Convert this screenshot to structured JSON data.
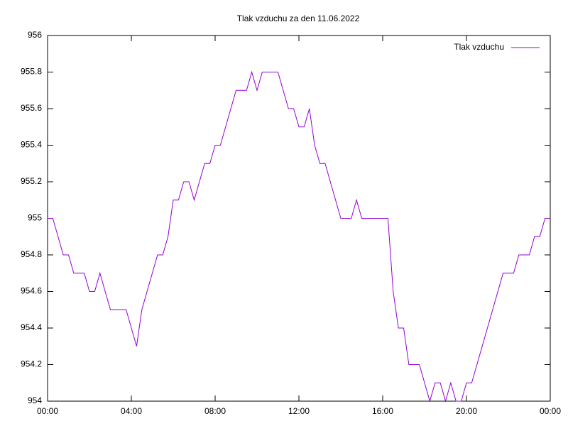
{
  "chart_data": {
    "type": "line",
    "title": "Tlak vzduchu za den 11.06.2022",
    "x": [
      0,
      0.25,
      0.5,
      0.75,
      1,
      1.25,
      1.5,
      1.75,
      2,
      2.25,
      2.5,
      2.75,
      3,
      3.25,
      3.5,
      3.75,
      4,
      4.25,
      4.5,
      4.75,
      5,
      5.25,
      5.5,
      5.75,
      6,
      6.25,
      6.5,
      6.75,
      7,
      7.25,
      7.5,
      7.75,
      8,
      8.25,
      8.5,
      8.75,
      9,
      9.25,
      9.5,
      9.75,
      10,
      10.25,
      10.5,
      10.75,
      11,
      11.25,
      11.5,
      11.75,
      12,
      12.25,
      12.5,
      12.75,
      13,
      13.25,
      13.5,
      13.75,
      14,
      14.25,
      14.5,
      14.75,
      15,
      15.25,
      15.5,
      15.75,
      16,
      16.25,
      16.5,
      16.75,
      17,
      17.25,
      17.5,
      17.75,
      18,
      18.25,
      18.5,
      18.75,
      19,
      19.25,
      19.5,
      19.75,
      20,
      20.25,
      20.5,
      20.75,
      21,
      21.25,
      21.5,
      21.75,
      22,
      22.25,
      22.5,
      22.75,
      23,
      23.25,
      23.5,
      23.75,
      24
    ],
    "series": [
      {
        "name": "Tlak vzduchu",
        "color": "#9400d3",
        "values": [
          955.0,
          955.0,
          954.9,
          954.8,
          954.8,
          954.7,
          954.7,
          954.7,
          954.6,
          954.6,
          954.7,
          954.6,
          954.5,
          954.5,
          954.5,
          954.5,
          954.4,
          954.3,
          954.5,
          954.6,
          954.7,
          954.8,
          954.8,
          954.9,
          955.1,
          955.1,
          955.2,
          955.2,
          955.1,
          955.2,
          955.3,
          955.3,
          955.4,
          955.4,
          955.5,
          955.6,
          955.7,
          955.7,
          955.7,
          955.8,
          955.7,
          955.8,
          955.8,
          955.8,
          955.8,
          955.7,
          955.6,
          955.6,
          955.5,
          955.5,
          955.6,
          955.4,
          955.3,
          955.3,
          955.2,
          955.1,
          955.0,
          955.0,
          955.0,
          955.1,
          955.0,
          955.0,
          955.0,
          955.0,
          955.0,
          955.0,
          954.6,
          954.4,
          954.4,
          954.2,
          954.2,
          954.2,
          954.1,
          954.0,
          954.1,
          954.1,
          954.0,
          954.1,
          954.0,
          954.0,
          954.1,
          954.1,
          954.2,
          954.3,
          954.4,
          954.5,
          954.6,
          954.7,
          954.7,
          954.7,
          954.8,
          954.8,
          954.8,
          954.9,
          954.9,
          955.0,
          955.0
        ]
      }
    ],
    "xlim": [
      0,
      24
    ],
    "xticks": [
      {
        "value": 0,
        "label": "00:00"
      },
      {
        "value": 4,
        "label": "04:00"
      },
      {
        "value": 8,
        "label": "08:00"
      },
      {
        "value": 12,
        "label": "12:00"
      },
      {
        "value": 16,
        "label": "16:00"
      },
      {
        "value": 20,
        "label": "20:00"
      },
      {
        "value": 24,
        "label": "00:00"
      }
    ],
    "ylim": [
      954,
      956
    ],
    "yticks": [
      954,
      954.2,
      954.4,
      954.6,
      954.8,
      955,
      955.2,
      955.4,
      955.6,
      955.8,
      956
    ],
    "legend": "top-right"
  }
}
